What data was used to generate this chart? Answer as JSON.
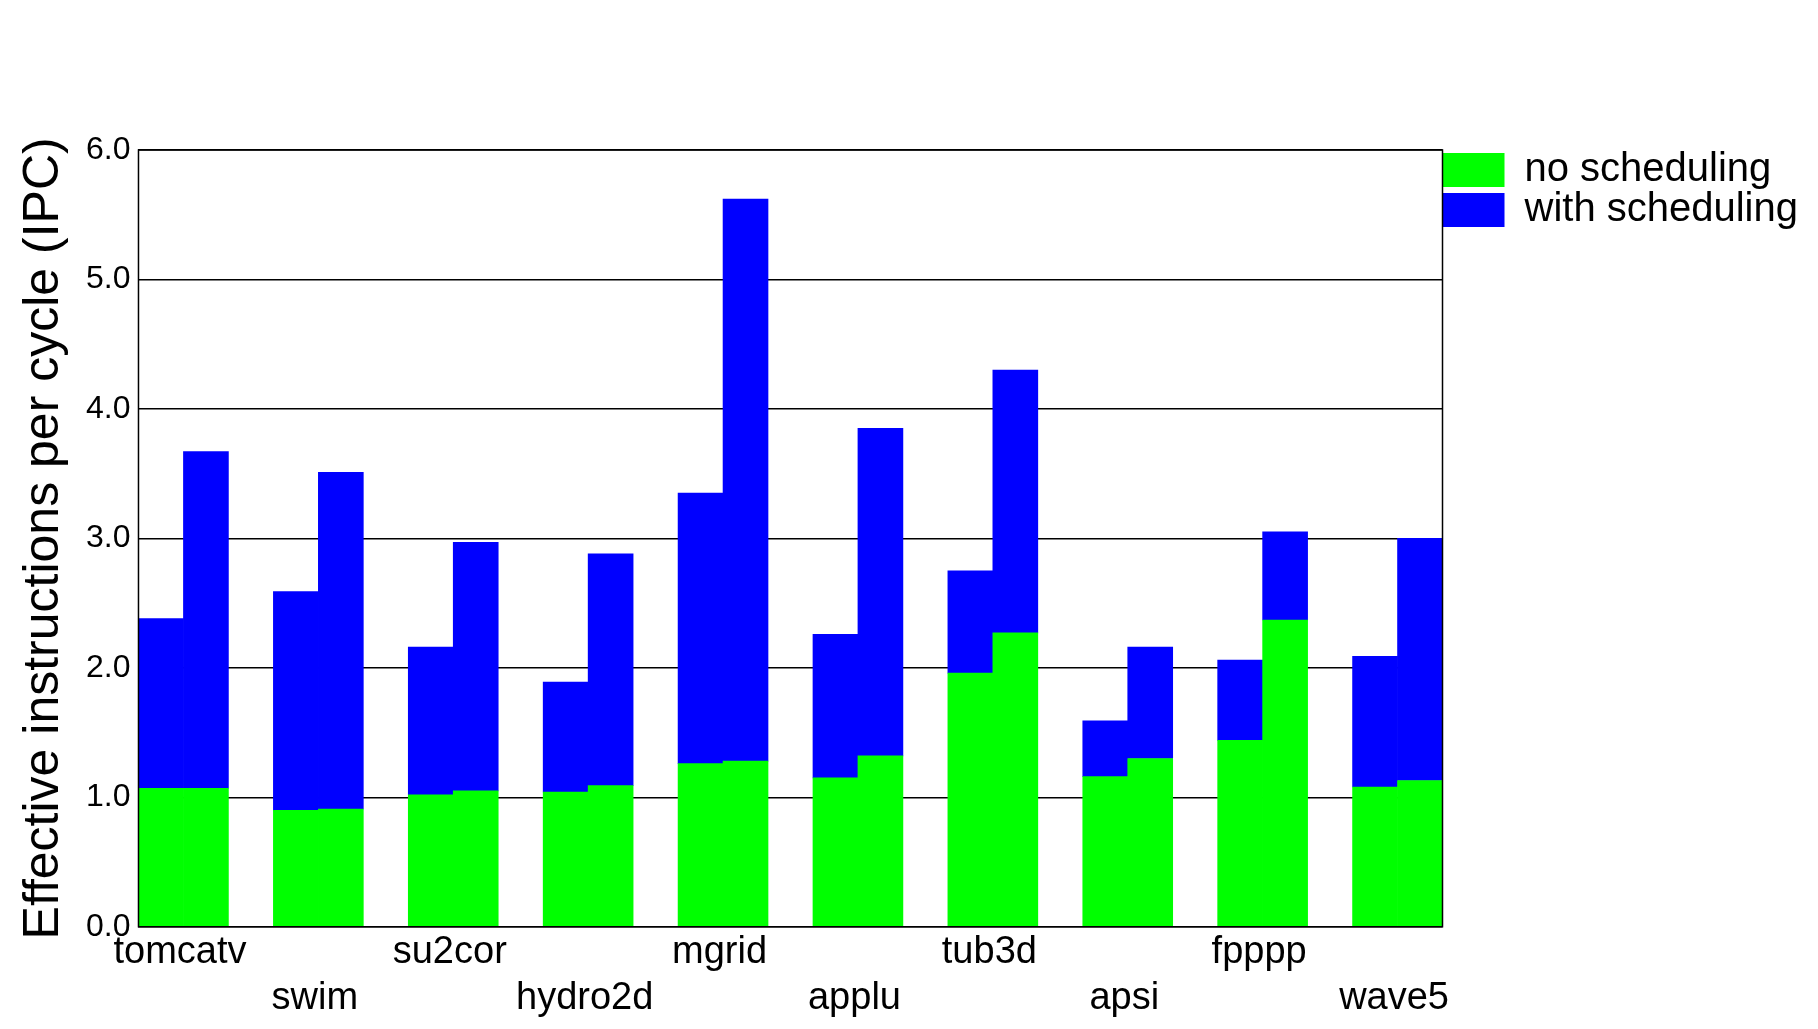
{
  "chart_data": {
    "type": "bar",
    "ylabel": "Effective instructions per cycle (IPC)",
    "categories": [
      "tomcatv",
      null,
      null,
      "swim",
      null,
      null,
      "su2cor",
      null,
      null,
      "hydro2d",
      null,
      null,
      "mgrid",
      null,
      null,
      "applu",
      null,
      null,
      "tub3d",
      null,
      null,
      "apsi",
      null,
      null,
      "fpppp",
      null,
      null,
      "wave5",
      null
    ],
    "stacked": true,
    "series": [
      {
        "name": "no scheduling",
        "color": "#00ff00",
        "values": [
          1.07,
          1.07,
          null,
          0.9,
          0.91,
          null,
          1.02,
          1.05,
          null,
          1.04,
          1.09,
          null,
          1.26,
          1.28,
          null,
          1.15,
          1.32,
          null,
          1.96,
          2.27,
          null,
          1.16,
          1.3,
          null,
          1.44,
          2.37,
          null,
          1.08,
          1.13
        ]
      },
      {
        "name": "with scheduling",
        "color": "#0000ff",
        "values": [
          1.31,
          2.6,
          null,
          1.69,
          2.6,
          null,
          1.14,
          1.92,
          null,
          0.85,
          1.79,
          null,
          2.09,
          4.34,
          null,
          1.11,
          2.53,
          null,
          0.79,
          2.03,
          null,
          0.43,
          0.86,
          null,
          0.62,
          0.68,
          null,
          1.01,
          1.87
        ]
      }
    ],
    "ylim": [
      0,
      6
    ],
    "yticks": [
      {
        "value": 0,
        "label": "0.0"
      },
      {
        "value": 1,
        "label": "1.0"
      },
      {
        "value": 2,
        "label": "2.0"
      },
      {
        "value": 3,
        "label": "3.0"
      },
      {
        "value": 4,
        "label": "4.0"
      },
      {
        "value": 5,
        "label": "5.0"
      },
      {
        "value": 6,
        "label": "6.0"
      }
    ],
    "grid": "y",
    "legend": "top right"
  }
}
